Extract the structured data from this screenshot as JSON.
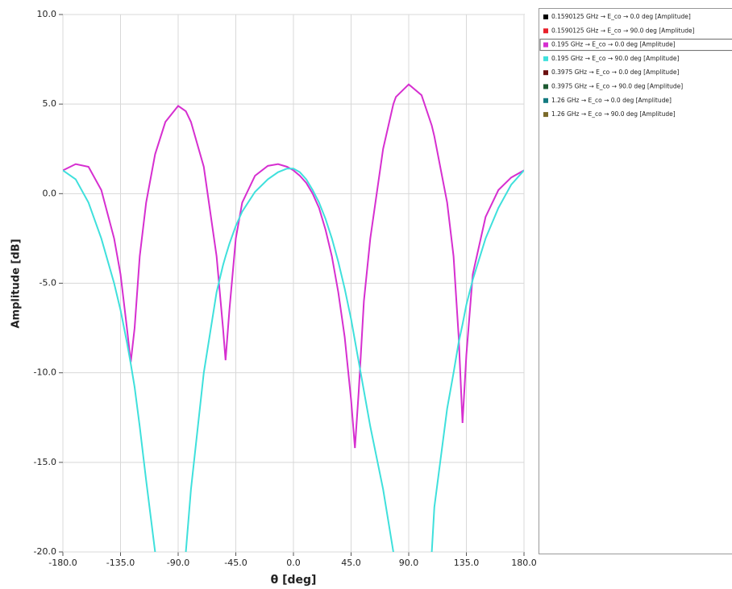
{
  "chart_data": {
    "type": "line",
    "xlabel": "θ [deg]",
    "ylabel": "Amplitude [dB]",
    "x": [
      -180,
      -170,
      -160,
      -150,
      -140,
      -135,
      -130,
      -127,
      -124,
      -120,
      -115,
      -108,
      -100,
      -90,
      -84,
      -80,
      -70,
      -60,
      -55,
      -53,
      -50,
      -45,
      -40,
      -30,
      -20,
      -12,
      -5,
      0,
      5,
      10,
      15,
      20,
      25,
      30,
      35,
      40,
      45,
      48,
      51,
      55,
      60,
      70,
      78,
      80,
      90,
      100,
      108,
      110,
      120,
      125,
      129,
      132,
      135,
      140,
      150,
      160,
      170,
      180
    ],
    "series": [
      {
        "name": "0.1590125 GHz → E_co → 0.0 deg [Amplitude]",
        "color": "#000000"
      },
      {
        "name": "0.1590125 GHz → E_co → 90.0 deg [Amplitude]",
        "color": "#e8202a"
      },
      {
        "name": "0.195 GHz → E_co → 0.0 deg [Amplitude]",
        "color": "#d62fd0",
        "values": [
          1.3,
          1.65,
          1.5,
          0.2,
          -2.5,
          -4.5,
          -7.5,
          -9.4,
          -7.5,
          -3.5,
          -0.5,
          2.2,
          4.0,
          4.9,
          4.6,
          4.0,
          1.5,
          -3.5,
          -7.5,
          -9.3,
          -6.5,
          -2.5,
          -0.5,
          1.0,
          1.55,
          1.65,
          1.5,
          1.3,
          1.0,
          0.6,
          0.0,
          -0.8,
          -2,
          -3.5,
          -5.5,
          -8,
          -11.5,
          -14.2,
          -11,
          -6,
          -2.5,
          2.5,
          5.0,
          5.4,
          6.1,
          5.5,
          3.8,
          3.2,
          -0.5,
          -3.5,
          -8,
          -12.8,
          -9,
          -4.5,
          -1.3,
          0.2,
          0.9,
          1.3
        ]
      },
      {
        "name": "0.195 GHz → E_co → 90.0 deg [Amplitude]",
        "color": "#3fe0dc",
        "values": [
          1.3,
          0.8,
          -0.5,
          -2.5,
          -5,
          -6.5,
          -8.3,
          -9.5,
          -10.8,
          -13,
          -16,
          -20,
          null,
          null,
          -20,
          -16.5,
          -10,
          -5.5,
          -4,
          -3.5,
          -2.8,
          -1.8,
          -1.0,
          0.1,
          0.8,
          1.2,
          1.4,
          1.4,
          1.2,
          0.8,
          0.2,
          -0.5,
          -1.4,
          -2.5,
          -3.8,
          -5.3,
          -7,
          -8.2,
          -9.4,
          -11,
          -13,
          -16.5,
          -20,
          null,
          null,
          null,
          -20,
          -17.5,
          -12,
          -10,
          -8.3,
          -7.3,
          -6.2,
          -4.8,
          -2.5,
          -0.8,
          0.5,
          1.3
        ]
      },
      {
        "name": "0.3975 GHz → E_co → 0.0 deg [Amplitude]",
        "color": "#6b1010"
      },
      {
        "name": "0.3975 GHz → E_co → 90.0 deg [Amplitude]",
        "color": "#1e5a32"
      },
      {
        "name": "1.26 GHz → E_co → 0.0 deg [Amplitude]",
        "color": "#137a80"
      },
      {
        "name": "1.26 GHz → E_co → 90.0 deg [Amplitude]",
        "color": "#7a6a2a"
      }
    ],
    "highlighted": 2,
    "xlim": [
      -180,
      180
    ],
    "xticks": [
      {
        "value": -180,
        "label": "-180.0"
      },
      {
        "value": -135,
        "label": "-135.0"
      },
      {
        "value": -90,
        "label": "-90.0"
      },
      {
        "value": -45,
        "label": "-45.0"
      },
      {
        "value": 0,
        "label": "0.0"
      },
      {
        "value": 45,
        "label": "45.0"
      },
      {
        "value": 90,
        "label": "90.0"
      },
      {
        "value": 135,
        "label": "135.0"
      },
      {
        "value": 180,
        "label": "180.0"
      }
    ],
    "ylim": [
      -20,
      10
    ],
    "yticks": [
      {
        "value": -20,
        "label": "-20.0"
      },
      {
        "value": -15,
        "label": "-15.0"
      },
      {
        "value": -10,
        "label": "-10.0"
      },
      {
        "value": -5,
        "label": "-5.0"
      },
      {
        "value": 0,
        "label": "0.0"
      },
      {
        "value": 5,
        "label": "5.0"
      },
      {
        "value": 10,
        "label": "10.0"
      }
    ],
    "grid": true
  }
}
